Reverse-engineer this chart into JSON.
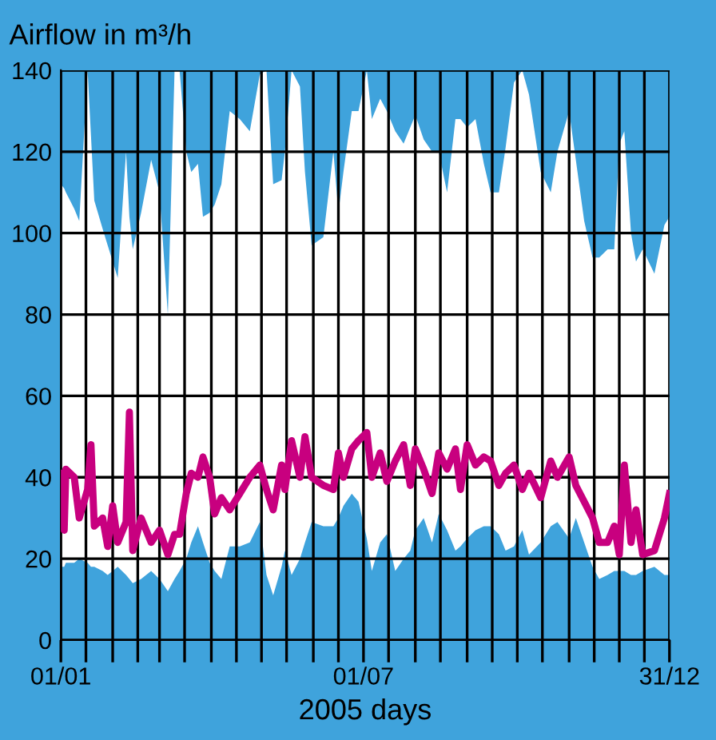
{
  "chart_data": {
    "type": "line",
    "ylabel": "Airflow in m³/h",
    "xlabel": "2005 days",
    "xlim": [
      "2005-01-01",
      "2005-12-31"
    ],
    "ylim": [
      0,
      140
    ],
    "yticks": [
      0,
      20,
      40,
      60,
      80,
      100,
      120,
      140
    ],
    "xticks": [
      {
        "value": "2005-01-01",
        "label": "01/01"
      },
      {
        "value": "2005-01-16",
        "label": null
      },
      {
        "value": "2005-02-01",
        "label": null
      },
      {
        "value": "2005-02-16",
        "label": null
      },
      {
        "value": "2005-03-01",
        "label": null
      },
      {
        "value": "2005-03-16",
        "label": null
      },
      {
        "value": "2005-04-01",
        "label": null
      },
      {
        "value": "2005-04-16",
        "label": null
      },
      {
        "value": "2005-05-01",
        "label": null
      },
      {
        "value": "2005-05-16",
        "label": null
      },
      {
        "value": "2005-06-01",
        "label": null
      },
      {
        "value": "2005-06-16",
        "label": null
      },
      {
        "value": "2005-07-01",
        "label": "01/07"
      },
      {
        "value": "2005-07-16",
        "label": null
      },
      {
        "value": "2005-08-01",
        "label": null
      },
      {
        "value": "2005-08-16",
        "label": null
      },
      {
        "value": "2005-09-01",
        "label": null
      },
      {
        "value": "2005-09-16",
        "label": null
      },
      {
        "value": "2005-10-01",
        "label": null
      },
      {
        "value": "2005-10-16",
        "label": null
      },
      {
        "value": "2005-11-01",
        "label": null
      },
      {
        "value": "2005-11-16",
        "label": null
      },
      {
        "value": "2005-12-01",
        "label": null
      },
      {
        "value": "2005-12-16",
        "label": null
      },
      {
        "value": "2005-12-31",
        "label": "31/12"
      }
    ],
    "grid": true,
    "series": [
      {
        "color": "#c8007f",
        "upper": [
          112,
          111,
          110,
          106,
          103,
          140,
          124,
          108,
          101,
          97,
          93,
          89,
          120,
          104,
          96,
          105,
          118,
          110,
          80,
          140,
          140,
          120,
          115,
          117,
          104,
          105,
          107,
          112,
          130,
          128,
          125,
          139,
          140,
          112,
          113,
          120,
          140,
          136,
          115,
          97,
          99,
          120,
          105,
          115,
          130,
          130,
          140,
          128,
          133,
          130,
          125,
          122,
          126,
          129,
          123,
          120,
          120,
          110,
          128,
          128,
          126,
          128,
          117,
          110,
          110,
          121,
          137,
          140,
          134,
          115,
          110,
          120,
          130,
          118,
          103,
          94,
          94,
          96,
          96,
          122,
          125,
          100,
          93,
          96,
          90,
          102,
          104
        ],
        "lower": [
          18,
          18,
          19,
          19,
          20,
          19,
          18,
          18,
          17,
          16,
          17,
          18,
          16,
          15,
          14,
          15,
          17,
          15,
          12,
          15,
          17,
          20,
          24,
          28,
          24,
          19,
          17,
          15,
          23,
          23,
          24,
          29,
          16,
          11,
          18,
          22,
          16,
          20,
          24,
          29,
          28,
          28,
          30,
          33,
          36,
          34,
          25,
          17,
          24,
          26,
          17,
          20,
          22,
          27,
          30,
          24,
          31,
          27,
          22,
          23,
          25,
          27,
          28,
          28,
          26,
          22,
          23,
          27,
          21,
          24,
          28,
          29,
          25,
          30,
          24,
          18,
          15,
          16,
          17,
          17,
          17,
          16,
          16,
          17,
          18,
          16,
          16
        ],
        "x": [
          "2005-01-01",
          "2005-01-03",
          "2005-01-04",
          "2005-01-09",
          "2005-01-12",
          "2005-01-17",
          "2005-01-19",
          "2005-01-21",
          "2005-01-26",
          "2005-01-29",
          "2005-02-01",
          "2005-02-04",
          "2005-02-09",
          "2005-02-11",
          "2005-02-13",
          "2005-02-18",
          "2005-02-24",
          "2005-03-01",
          "2005-03-06",
          "2005-03-10",
          "2005-03-13",
          "2005-03-17",
          "2005-03-20",
          "2005-03-24",
          "2005-03-27",
          "2005-03-31",
          "2005-04-03",
          "2005-04-07",
          "2005-04-12",
          "2005-04-18",
          "2005-04-24",
          "2005-04-30",
          "2005-05-04",
          "2005-05-08",
          "2005-05-13",
          "2005-05-15",
          "2005-05-19",
          "2005-05-24",
          "2005-05-27",
          "2005-05-31",
          "2005-06-07",
          "2005-06-13",
          "2005-06-16",
          "2005-06-19",
          "2005-06-24",
          "2005-06-28",
          "2005-07-03",
          "2005-07-06",
          "2005-07-11",
          "2005-07-15",
          "2005-07-20",
          "2005-07-25",
          "2005-07-29",
          "2005-08-01",
          "2005-08-06",
          "2005-08-11",
          "2005-08-15",
          "2005-08-20",
          "2005-08-25",
          "2005-08-28",
          "2005-09-01",
          "2005-09-06",
          "2005-09-11",
          "2005-09-15",
          "2005-09-20",
          "2005-09-24",
          "2005-09-29",
          "2005-10-04",
          "2005-10-08",
          "2005-10-15",
          "2005-10-21",
          "2005-10-25",
          "2005-11-01",
          "2005-11-05",
          "2005-11-10",
          "2005-11-15",
          "2005-11-19",
          "2005-11-24",
          "2005-11-28",
          "2005-12-01",
          "2005-12-04",
          "2005-12-08",
          "2005-12-11",
          "2005-12-15",
          "2005-12-22",
          "2005-12-28",
          "2005-12-31"
        ],
        "values": [
          41,
          27,
          42,
          40,
          30,
          37,
          48,
          28,
          30,
          23,
          33,
          24,
          29,
          56,
          22,
          30,
          24,
          27,
          21,
          26,
          26,
          36,
          41,
          40,
          45,
          40,
          31,
          35,
          32,
          36,
          40,
          43,
          37,
          32,
          43,
          37,
          49,
          40,
          50,
          40,
          38,
          37,
          46,
          40,
          47,
          49,
          51,
          40,
          46,
          39,
          44,
          48,
          38,
          47,
          42,
          36,
          46,
          42,
          47,
          37,
          48,
          43,
          45,
          44,
          38,
          41,
          43,
          37,
          41,
          35,
          44,
          40,
          45,
          38,
          34,
          30,
          24,
          24,
          28,
          21,
          43,
          24,
          32,
          21,
          22,
          30,
          36
        ]
      }
    ]
  }
}
